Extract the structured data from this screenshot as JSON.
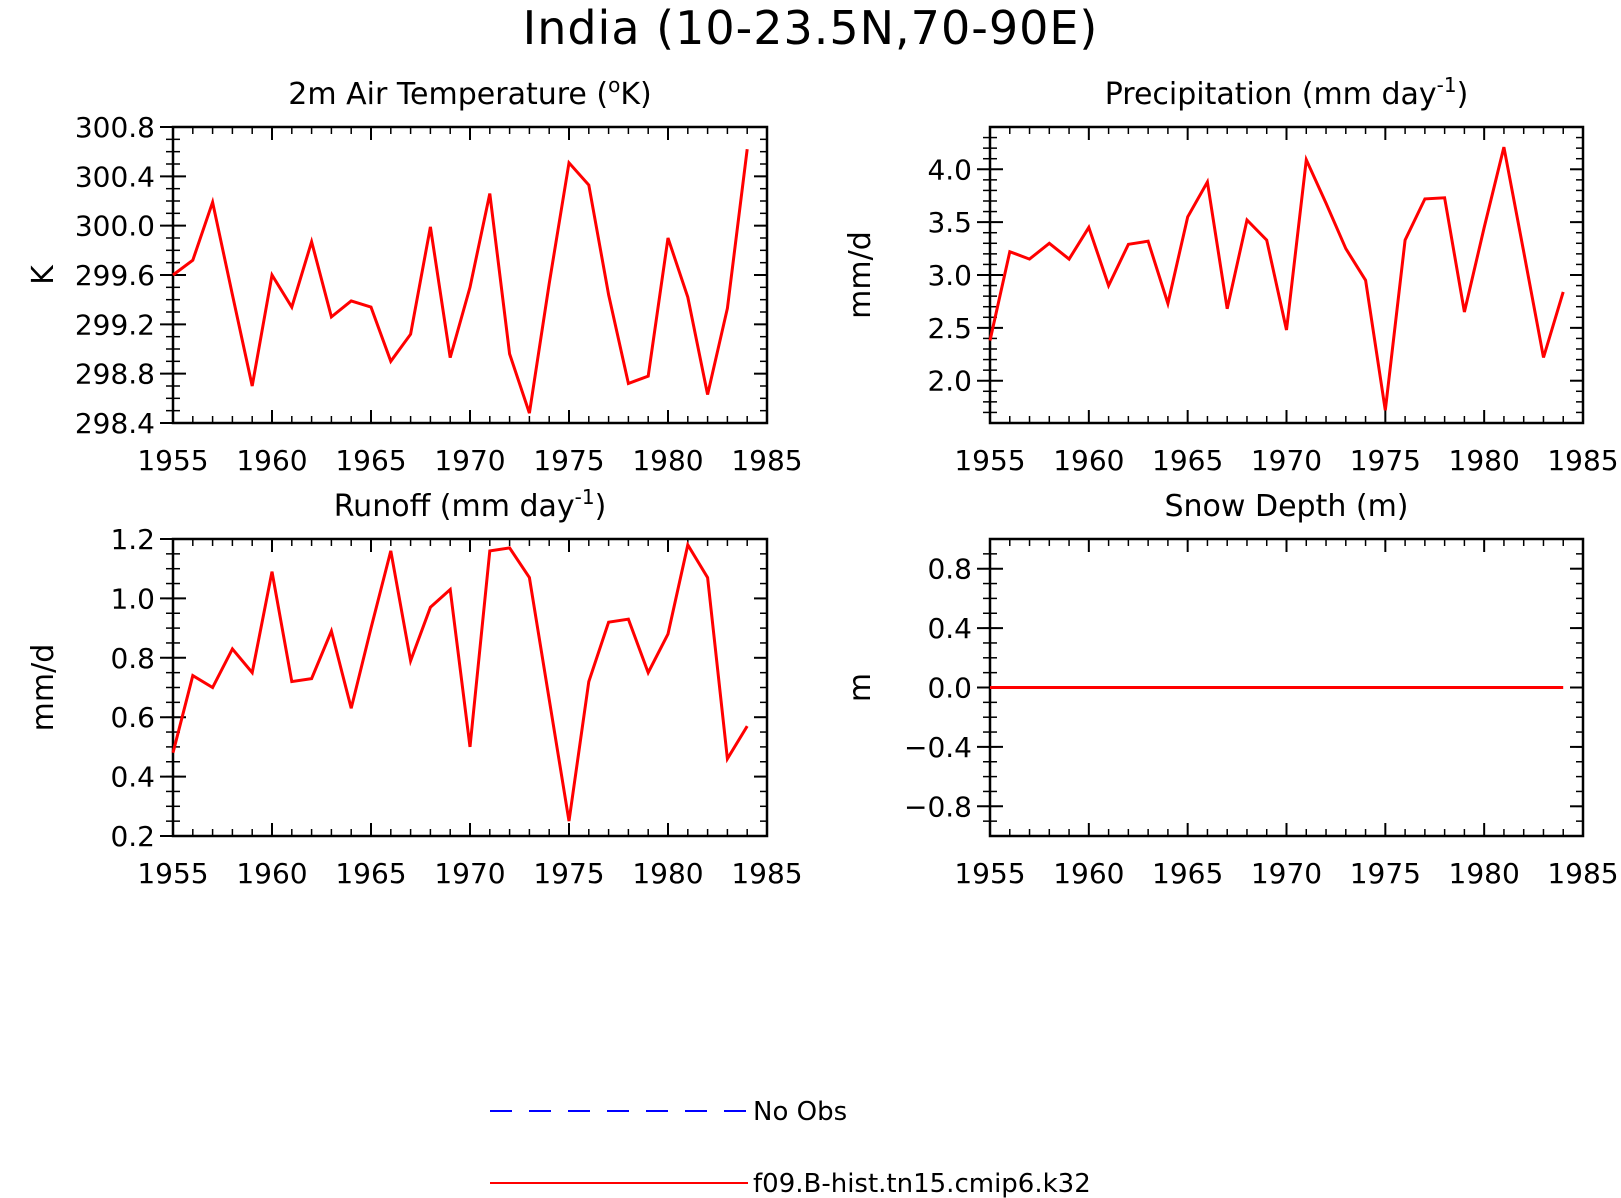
{
  "title": "India (10-23.5N,70-90E)",
  "colors": {
    "model": "#ff0000",
    "obs": "#0000ff",
    "axis": "#000000"
  },
  "legend": [
    {
      "label": "No Obs",
      "color": "#0000ff",
      "style": "dashed"
    },
    {
      "label": "f09.B-hist.tn15.cmip6.k32",
      "color": "#ff0000",
      "style": "solid"
    }
  ],
  "chart_data": [
    {
      "type": "line",
      "title_parts": [
        "2m Air Temperature (",
        "o",
        "K)"
      ],
      "ylabel": "K",
      "xlim": [
        1955,
        1985
      ],
      "ylim": [
        298.4,
        300.8
      ],
      "xticks": [
        1955,
        1960,
        1965,
        1970,
        1975,
        1980,
        1985
      ],
      "yticks": [
        "298.4",
        "298.8",
        "299.2",
        "299.6",
        "300.0",
        "300.4",
        "300.8"
      ],
      "x": [
        1955,
        1956,
        1957,
        1958,
        1959,
        1960,
        1961,
        1962,
        1963,
        1964,
        1965,
        1966,
        1967,
        1968,
        1969,
        1970,
        1971,
        1972,
        1973,
        1974,
        1975,
        1976,
        1977,
        1978,
        1979,
        1980,
        1981,
        1982,
        1983,
        1984
      ],
      "series": [
        {
          "name": "f09.B-hist.tn15.cmip6.k32",
          "values": [
            299.6,
            299.72,
            300.19,
            299.44,
            298.7,
            299.6,
            299.34,
            299.87,
            299.26,
            299.39,
            299.34,
            298.9,
            299.12,
            299.99,
            298.93,
            299.5,
            300.26,
            298.96,
            298.48,
            299.53,
            300.51,
            300.33,
            299.44,
            298.72,
            298.78,
            299.9,
            299.42,
            298.63,
            299.33,
            300.62
          ]
        }
      ]
    },
    {
      "type": "line",
      "title_parts": [
        "Precipitation (mm day",
        "-1",
        ")"
      ],
      "ylabel": "mm/d",
      "xlim": [
        1955,
        1985
      ],
      "ylim": [
        1.6,
        4.4
      ],
      "xticks": [
        1955,
        1960,
        1965,
        1970,
        1975,
        1980,
        1985
      ],
      "yticks": [
        "2.0",
        "2.5",
        "3.0",
        "3.5",
        "4.0"
      ],
      "x": [
        1955,
        1956,
        1957,
        1958,
        1959,
        1960,
        1961,
        1962,
        1963,
        1964,
        1965,
        1966,
        1967,
        1968,
        1969,
        1970,
        1971,
        1972,
        1973,
        1974,
        1975,
        1976,
        1977,
        1978,
        1979,
        1980,
        1981,
        1982,
        1983,
        1984
      ],
      "series": [
        {
          "name": "f09.B-hist.tn15.cmip6.k32",
          "values": [
            2.38,
            3.22,
            3.15,
            3.3,
            3.15,
            3.45,
            2.9,
            3.29,
            3.32,
            2.73,
            3.55,
            3.88,
            2.68,
            3.52,
            3.33,
            2.48,
            4.09,
            3.68,
            3.25,
            2.95,
            1.72,
            3.33,
            3.72,
            3.73,
            2.65,
            3.45,
            4.21,
            3.22,
            2.22,
            2.84
          ]
        }
      ]
    },
    {
      "type": "line",
      "title_parts": [
        "Runoff (mm day",
        "-1",
        ")"
      ],
      "ylabel": "mm/d",
      "xlim": [
        1955,
        1985
      ],
      "ylim": [
        0.2,
        1.2
      ],
      "xticks": [
        1955,
        1960,
        1965,
        1970,
        1975,
        1980,
        1985
      ],
      "yticks": [
        "0.2",
        "0.4",
        "0.6",
        "0.8",
        "1.0",
        "1.2"
      ],
      "x": [
        1955,
        1956,
        1957,
        1958,
        1959,
        1960,
        1961,
        1962,
        1963,
        1964,
        1965,
        1966,
        1967,
        1968,
        1969,
        1970,
        1971,
        1972,
        1973,
        1974,
        1975,
        1976,
        1977,
        1978,
        1979,
        1980,
        1981,
        1982,
        1983,
        1984
      ],
      "series": [
        {
          "name": "f09.B-hist.tn15.cmip6.k32",
          "values": [
            0.48,
            0.74,
            0.7,
            0.83,
            0.75,
            1.09,
            0.72,
            0.73,
            0.89,
            0.63,
            0.9,
            1.16,
            0.79,
            0.97,
            1.03,
            0.5,
            1.16,
            1.17,
            1.07,
            0.66,
            0.25,
            0.72,
            0.92,
            0.93,
            0.75,
            0.88,
            1.18,
            1.07,
            0.46,
            0.57
          ]
        }
      ]
    },
    {
      "type": "line",
      "title_parts": [
        "Snow Depth (m)"
      ],
      "ylabel": "m",
      "xlim": [
        1955,
        1985
      ],
      "ylim": [
        -1.0,
        1.0
      ],
      "xticks": [
        1955,
        1960,
        1965,
        1970,
        1975,
        1980,
        1985
      ],
      "yticks": [
        "−0.8",
        "−0.4",
        "0.0",
        "0.4",
        "0.8"
      ],
      "x": [
        1955,
        1956,
        1957,
        1958,
        1959,
        1960,
        1961,
        1962,
        1963,
        1964,
        1965,
        1966,
        1967,
        1968,
        1969,
        1970,
        1971,
        1972,
        1973,
        1974,
        1975,
        1976,
        1977,
        1978,
        1979,
        1980,
        1981,
        1982,
        1983,
        1984
      ],
      "series": [
        {
          "name": "f09.B-hist.tn15.cmip6.k32",
          "values": [
            0,
            0,
            0,
            0,
            0,
            0,
            0,
            0,
            0,
            0,
            0,
            0,
            0,
            0,
            0,
            0,
            0,
            0,
            0,
            0,
            0,
            0,
            0,
            0,
            0,
            0,
            0,
            0,
            0,
            0
          ]
        }
      ]
    }
  ]
}
